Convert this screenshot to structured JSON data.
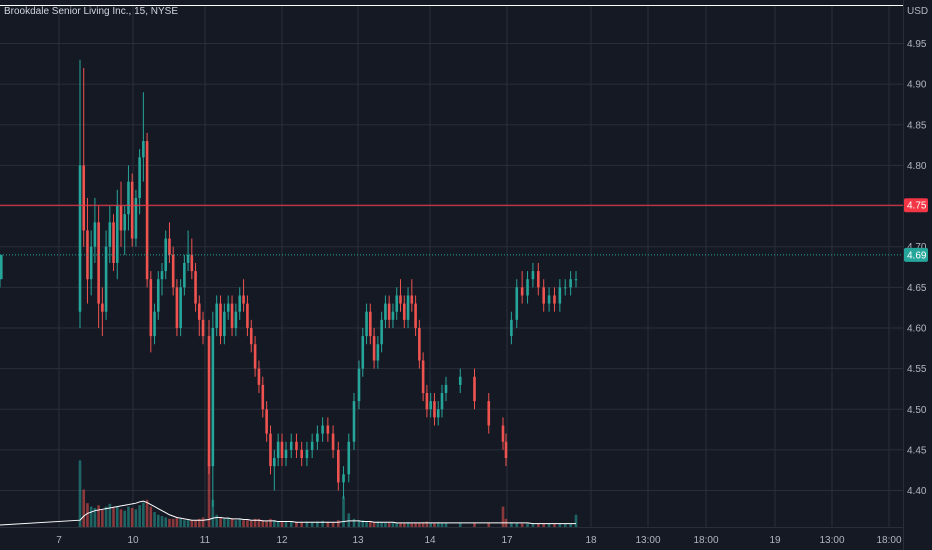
{
  "chart_data": {
    "type": "candlestick",
    "title": "Brookdale Senior Living Inc., 15, NYSE",
    "currency_label": "USD",
    "ylim": [
      4.36,
      4.99
    ],
    "y_ticks": [
      "4.95",
      "4.90",
      "4.85",
      "4.80",
      "4.75",
      "4.70",
      "4.65",
      "4.60",
      "4.55",
      "4.50",
      "4.45",
      "4.40"
    ],
    "x_tick_labels": [
      "7",
      "10",
      "11",
      "12",
      "13",
      "14",
      "17",
      "18",
      "13:00",
      "18:00",
      "19",
      "13:00",
      "18:00"
    ],
    "grid": true,
    "colors": {
      "background": "#151924",
      "grid": "#2a2e39",
      "up": "#26a69a",
      "down": "#ef5350",
      "volume_up": "#26a69a",
      "volume_down": "#ef5350",
      "volume_ma": "#ffffff",
      "resistance": "#f23645",
      "last_price": "#26a69a"
    },
    "horizontal_lines": [
      {
        "label": "4.75",
        "value": 4.751,
        "style": "solid",
        "color": "#f23645"
      },
      {
        "label": "4.69",
        "value": 4.69,
        "style": "dotted",
        "color": "#26a69a"
      }
    ],
    "ohlc": [
      [
        4.62,
        4.93,
        4.6,
        4.8
      ],
      [
        4.8,
        4.92,
        4.7,
        4.72
      ],
      [
        4.72,
        4.76,
        4.63,
        4.66
      ],
      [
        4.66,
        4.72,
        4.64,
        4.7
      ],
      [
        4.7,
        4.76,
        4.68,
        4.73
      ],
      [
        4.73,
        4.75,
        4.6,
        4.63
      ],
      [
        4.63,
        4.65,
        4.59,
        4.62
      ],
      [
        4.62,
        4.72,
        4.61,
        4.7
      ],
      [
        4.7,
        4.75,
        4.68,
        4.73
      ],
      [
        4.73,
        4.74,
        4.67,
        4.68
      ],
      [
        4.68,
        4.77,
        4.66,
        4.75
      ],
      [
        4.75,
        4.78,
        4.7,
        4.72
      ],
      [
        4.72,
        4.75,
        4.69,
        4.74
      ],
      [
        4.74,
        4.8,
        4.72,
        4.78
      ],
      [
        4.78,
        4.79,
        4.7,
        4.71
      ],
      [
        4.71,
        4.77,
        4.7,
        4.76
      ],
      [
        4.76,
        4.82,
        4.74,
        4.81
      ],
      [
        4.81,
        4.89,
        4.78,
        4.83
      ],
      [
        4.83,
        4.84,
        4.65,
        4.66
      ],
      [
        4.66,
        4.67,
        4.57,
        4.59
      ],
      [
        4.59,
        4.63,
        4.58,
        4.62
      ],
      [
        4.62,
        4.67,
        4.61,
        4.66
      ],
      [
        4.66,
        4.68,
        4.64,
        4.67
      ],
      [
        4.67,
        4.72,
        4.66,
        4.71
      ],
      [
        4.71,
        4.73,
        4.68,
        4.69
      ],
      [
        4.69,
        4.7,
        4.64,
        4.65
      ],
      [
        4.65,
        4.66,
        4.59,
        4.6
      ],
      [
        4.6,
        4.66,
        4.59,
        4.65
      ],
      [
        4.65,
        4.69,
        4.64,
        4.68
      ],
      [
        4.68,
        4.72,
        4.67,
        4.69
      ],
      [
        4.69,
        4.71,
        4.66,
        4.67
      ],
      [
        4.67,
        4.68,
        4.62,
        4.63
      ],
      [
        4.63,
        4.64,
        4.59,
        4.61
      ],
      [
        4.61,
        4.62,
        4.58,
        4.59
      ],
      [
        4.59,
        4.61,
        4.42,
        4.43
      ],
      [
        4.43,
        4.62,
        4.38,
        4.6
      ],
      [
        4.6,
        4.64,
        4.59,
        4.63
      ],
      [
        4.63,
        4.64,
        4.58,
        4.59
      ],
      [
        4.59,
        4.63,
        4.58,
        4.62
      ],
      [
        4.62,
        4.64,
        4.61,
        4.63
      ],
      [
        4.63,
        4.64,
        4.59,
        4.6
      ],
      [
        4.6,
        4.63,
        4.59,
        4.62
      ],
      [
        4.62,
        4.65,
        4.61,
        4.64
      ],
      [
        4.64,
        4.66,
        4.62,
        4.63
      ],
      [
        4.63,
        4.64,
        4.59,
        4.6
      ],
      [
        4.6,
        4.61,
        4.57,
        4.58
      ],
      [
        4.58,
        4.59,
        4.54,
        4.55
      ],
      [
        4.55,
        4.56,
        4.52,
        4.53
      ],
      [
        4.53,
        4.54,
        4.49,
        4.5
      ],
      [
        4.5,
        4.51,
        4.46,
        4.47
      ],
      [
        4.47,
        4.48,
        4.42,
        4.43
      ],
      [
        4.43,
        4.45,
        4.4,
        4.44
      ],
      [
        4.44,
        4.47,
        4.43,
        4.46
      ],
      [
        4.46,
        4.47,
        4.43,
        4.44
      ],
      [
        4.44,
        4.46,
        4.43,
        4.45
      ],
      [
        4.45,
        4.47,
        4.44,
        4.46
      ],
      [
        4.46,
        4.47,
        4.44,
        4.45
      ],
      [
        4.45,
        4.46,
        4.43,
        4.44
      ],
      [
        4.44,
        4.46,
        4.43,
        4.45
      ],
      [
        4.45,
        4.47,
        4.44,
        4.46
      ],
      [
        4.46,
        4.48,
        4.45,
        4.47
      ],
      [
        4.47,
        4.49,
        4.46,
        4.48
      ],
      [
        4.48,
        4.49,
        4.46,
        4.47
      ],
      [
        4.47,
        4.48,
        4.44,
        4.45
      ],
      [
        4.45,
        4.46,
        4.4,
        4.41
      ],
      [
        4.41,
        4.43,
        4.39,
        4.42
      ],
      [
        4.42,
        4.47,
        4.41,
        4.46
      ],
      [
        4.46,
        4.52,
        4.45,
        4.51
      ],
      [
        4.51,
        4.56,
        4.5,
        4.55
      ],
      [
        4.55,
        4.6,
        4.54,
        4.59
      ],
      [
        4.59,
        4.63,
        4.58,
        4.62
      ],
      [
        4.62,
        4.63,
        4.58,
        4.59
      ],
      [
        4.59,
        4.6,
        4.55,
        4.56
      ],
      [
        4.56,
        4.59,
        4.55,
        4.58
      ],
      [
        4.58,
        4.62,
        4.57,
        4.61
      ],
      [
        4.61,
        4.64,
        4.6,
        4.63
      ],
      [
        4.63,
        4.64,
        4.6,
        4.61
      ],
      [
        4.61,
        4.63,
        4.6,
        4.62
      ],
      [
        4.62,
        4.65,
        4.61,
        4.64
      ],
      [
        4.64,
        4.66,
        4.62,
        4.63
      ],
      [
        4.63,
        4.64,
        4.6,
        4.61
      ],
      [
        4.61,
        4.65,
        4.6,
        4.64
      ],
      [
        4.64,
        4.66,
        4.62,
        4.63
      ],
      [
        4.63,
        4.64,
        4.59,
        4.6
      ],
      [
        4.6,
        4.61,
        4.55,
        4.56
      ],
      [
        4.56,
        4.57,
        4.51,
        4.52
      ],
      [
        4.52,
        4.53,
        4.49,
        4.5
      ],
      [
        4.5,
        4.52,
        4.49,
        4.51
      ],
      [
        4.51,
        4.52,
        4.48,
        4.49
      ],
      [
        4.49,
        4.51,
        4.48,
        4.5
      ],
      [
        4.5,
        4.53,
        4.49,
        4.52
      ],
      [
        4.52,
        4.54,
        4.51,
        4.53
      ],
      [
        4.53,
        4.55,
        4.52,
        4.54
      ],
      [
        4.54,
        4.55,
        4.5,
        4.51
      ],
      [
        4.51,
        4.52,
        4.47,
        4.48
      ],
      [
        4.48,
        4.49,
        4.45,
        4.46
      ],
      [
        4.46,
        4.47,
        4.43,
        4.44
      ],
      [
        4.59,
        4.62,
        4.58,
        4.61
      ],
      [
        4.61,
        4.66,
        4.6,
        4.65
      ],
      [
        4.65,
        4.67,
        4.63,
        4.64
      ],
      [
        4.64,
        4.67,
        4.63,
        4.66
      ],
      [
        4.66,
        4.68,
        4.65,
        4.67
      ],
      [
        4.67,
        4.68,
        4.64,
        4.65
      ],
      [
        4.65,
        4.66,
        4.62,
        4.63
      ],
      [
        4.63,
        4.65,
        4.62,
        4.64
      ],
      [
        4.64,
        4.65,
        4.62,
        4.63
      ],
      [
        4.63,
        4.66,
        4.62,
        4.65
      ],
      [
        4.65,
        4.66,
        4.64,
        4.65
      ],
      [
        4.65,
        4.67,
        4.64,
        4.66
      ],
      [
        4.66,
        4.67,
        4.65,
        4.66
      ],
      [
        4.66,
        4.69,
        4.65,
        4.69
      ]
    ],
    "volume": [
      0.98,
      0.55,
      0.35,
      0.3,
      0.28,
      0.32,
      0.25,
      0.3,
      0.34,
      0.28,
      0.3,
      0.26,
      0.24,
      0.3,
      0.28,
      0.26,
      0.32,
      0.36,
      0.4,
      0.3,
      0.22,
      0.18,
      0.16,
      0.14,
      0.12,
      0.12,
      0.14,
      0.12,
      0.1,
      0.1,
      0.1,
      0.1,
      0.12,
      0.14,
      0.95,
      0.4,
      0.18,
      0.14,
      0.12,
      0.14,
      0.12,
      0.1,
      0.12,
      0.1,
      0.1,
      0.09,
      0.12,
      0.12,
      0.1,
      0.09,
      0.12,
      0.1,
      0.08,
      0.08,
      0.07,
      0.08,
      0.07,
      0.07,
      0.08,
      0.07,
      0.08,
      0.09,
      0.07,
      0.07,
      0.1,
      0.45,
      0.2,
      0.12,
      0.1,
      0.1,
      0.08,
      0.08,
      0.07,
      0.08,
      0.07,
      0.06,
      0.06,
      0.07,
      0.06,
      0.06,
      0.06,
      0.07,
      0.06,
      0.06,
      0.06,
      0.07,
      0.08,
      0.06,
      0.06,
      0.07,
      0.06,
      0.06,
      0.06,
      0.06,
      0.06,
      0.3,
      0.12,
      0.07,
      0.06,
      0.05,
      0.05,
      0.05,
      0.05,
      0.05,
      0.05,
      0.05,
      0.05,
      0.05,
      0.05,
      0.18
    ],
    "volume_ma": [
      0.1,
      0.16,
      0.2,
      0.22,
      0.24,
      0.25,
      0.26,
      0.27,
      0.28,
      0.29,
      0.3,
      0.31,
      0.32,
      0.33,
      0.34,
      0.35,
      0.37,
      0.38,
      0.36,
      0.33,
      0.3,
      0.27,
      0.24,
      0.21,
      0.18,
      0.16,
      0.14,
      0.13,
      0.12,
      0.11,
      0.1,
      0.1,
      0.1,
      0.1,
      0.11,
      0.13,
      0.14,
      0.14,
      0.13,
      0.13,
      0.12,
      0.12,
      0.12,
      0.11,
      0.11,
      0.1,
      0.1,
      0.1,
      0.09,
      0.09,
      0.09,
      0.09,
      0.08,
      0.08,
      0.08,
      0.08,
      0.07,
      0.07,
      0.07,
      0.07,
      0.07,
      0.07,
      0.07,
      0.07,
      0.07,
      0.08,
      0.09,
      0.09,
      0.09,
      0.08,
      0.08,
      0.08,
      0.07,
      0.07,
      0.07,
      0.07,
      0.07,
      0.07,
      0.06,
      0.06,
      0.06,
      0.06,
      0.06,
      0.06,
      0.06,
      0.06,
      0.06,
      0.06,
      0.06,
      0.06,
      0.06,
      0.06,
      0.06,
      0.06,
      0.06,
      0.06,
      0.06,
      0.06,
      0.06,
      0.06,
      0.06,
      0.05,
      0.05,
      0.05,
      0.05,
      0.05,
      0.05,
      0.05,
      0.05,
      0.05
    ]
  }
}
